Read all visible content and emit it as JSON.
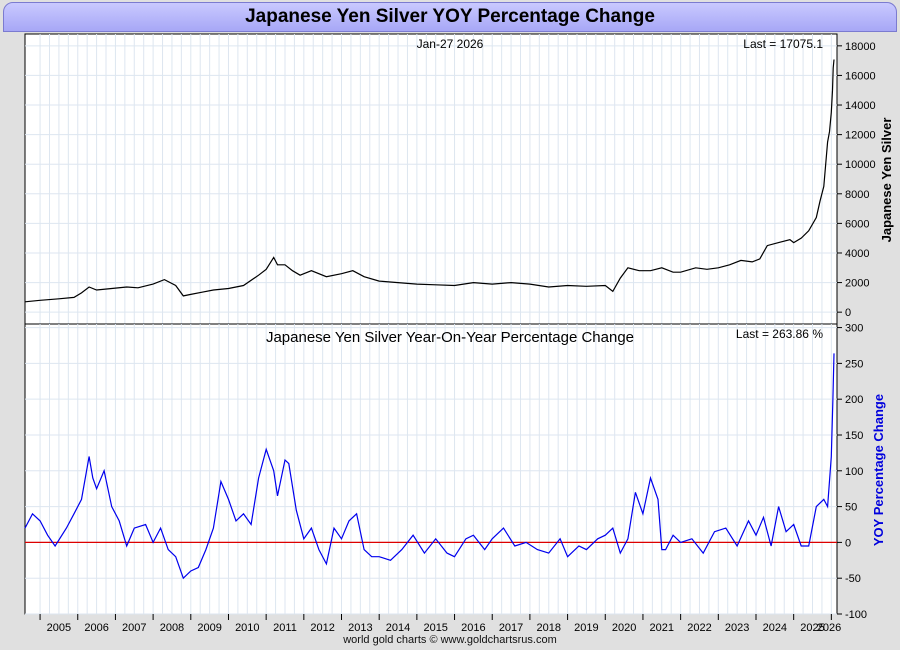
{
  "title": "Japanese Yen Silver YOY Percentage Change",
  "footer": "world gold charts © www.goldchartsrus.com",
  "colors": {
    "price_line": "#000000",
    "yoy_line": "#0000ee",
    "zero_line": "#dd0000",
    "grid": "#dde6f0",
    "ylabel_yoy": "#0000dd"
  },
  "chart_data": [
    {
      "type": "line",
      "title": "",
      "date_label": "Jan-27  2026",
      "last_label": "Last = 17075.1",
      "ylabel": "Japanese Yen Silver",
      "xlim": [
        2004.6,
        2026.15
      ],
      "ylim": [
        -800,
        18800
      ],
      "yticks": [
        0,
        2000,
        4000,
        6000,
        8000,
        10000,
        12000,
        14000,
        16000,
        18000
      ],
      "series": [
        {
          "name": "Japanese Yen Silver",
          "x": [
            2004.6,
            2005.0,
            2005.5,
            2005.9,
            2006.1,
            2006.3,
            2006.5,
            2006.9,
            2007.3,
            2007.6,
            2008.0,
            2008.3,
            2008.6,
            2008.8,
            2009.0,
            2009.3,
            2009.6,
            2010.0,
            2010.4,
            2010.8,
            2011.0,
            2011.2,
            2011.3,
            2011.5,
            2011.7,
            2011.9,
            2012.2,
            2012.6,
            2013.0,
            2013.3,
            2013.6,
            2014.0,
            2014.5,
            2015.0,
            2015.5,
            2016.0,
            2016.5,
            2017.0,
            2017.5,
            2018.0,
            2018.5,
            2019.0,
            2019.5,
            2020.0,
            2020.2,
            2020.4,
            2020.6,
            2020.9,
            2021.2,
            2021.5,
            2021.8,
            2022.0,
            2022.4,
            2022.7,
            2023.0,
            2023.3,
            2023.6,
            2023.9,
            2024.1,
            2024.3,
            2024.6,
            2024.9,
            2025.0,
            2025.2,
            2025.4,
            2025.6,
            2025.7,
            2025.8,
            2025.85,
            2025.9,
            2025.95,
            2026.0,
            2026.03,
            2026.05,
            2026.07
          ],
          "values": [
            700,
            800,
            900,
            1000,
            1300,
            1700,
            1500,
            1600,
            1700,
            1650,
            1900,
            2200,
            1800,
            1100,
            1200,
            1350,
            1500,
            1600,
            1800,
            2500,
            2900,
            3700,
            3200,
            3200,
            2800,
            2500,
            2800,
            2400,
            2600,
            2800,
            2400,
            2100,
            2000,
            1900,
            1850,
            1800,
            2000,
            1900,
            2000,
            1900,
            1700,
            1800,
            1750,
            1800,
            1400,
            2300,
            3000,
            2800,
            2800,
            3000,
            2700,
            2700,
            3000,
            2900,
            3000,
            3200,
            3500,
            3400,
            3600,
            4500,
            4700,
            4900,
            4700,
            5000,
            5500,
            6400,
            7500,
            8500,
            10000,
            11500,
            12200,
            13500,
            15000,
            16500,
            17075
          ]
        }
      ]
    },
    {
      "type": "line",
      "title": "Japanese Yen Silver Year-On-Year Percentage Change",
      "last_label": "Last = 263.86 %",
      "ylabel": "YOY Percentage Change",
      "xlabel_ticks": [
        "2005",
        "2006",
        "2007",
        "2008",
        "2009",
        "2010",
        "2011",
        "2012",
        "2013",
        "2014",
        "2015",
        "2016",
        "2017",
        "2018",
        "2019",
        "2020",
        "2021",
        "2022",
        "2023",
        "2024",
        "2025",
        "2026"
      ],
      "xlim": [
        2004.6,
        2026.15
      ],
      "ylim": [
        -100,
        305
      ],
      "yticks": [
        -100,
        -50,
        0,
        50,
        100,
        150,
        200,
        250,
        300
      ],
      "series": [
        {
          "name": "YOY Percentage Change",
          "x": [
            2004.6,
            2004.8,
            2005.0,
            2005.2,
            2005.4,
            2005.7,
            2005.9,
            2006.1,
            2006.3,
            2006.4,
            2006.5,
            2006.7,
            2006.9,
            2007.1,
            2007.3,
            2007.5,
            2007.8,
            2008.0,
            2008.2,
            2008.4,
            2008.6,
            2008.8,
            2009.0,
            2009.2,
            2009.4,
            2009.6,
            2009.8,
            2010.0,
            2010.2,
            2010.4,
            2010.6,
            2010.8,
            2011.0,
            2011.2,
            2011.3,
            2011.5,
            2011.6,
            2011.8,
            2012.0,
            2012.2,
            2012.4,
            2012.6,
            2012.8,
            2013.0,
            2013.2,
            2013.4,
            2013.6,
            2013.8,
            2014.0,
            2014.3,
            2014.6,
            2014.9,
            2015.2,
            2015.5,
            2015.8,
            2016.0,
            2016.3,
            2016.5,
            2016.8,
            2017.0,
            2017.3,
            2017.6,
            2017.9,
            2018.2,
            2018.5,
            2018.8,
            2019.0,
            2019.3,
            2019.5,
            2019.8,
            2020.0,
            2020.2,
            2020.4,
            2020.6,
            2020.8,
            2021.0,
            2021.2,
            2021.4,
            2021.5,
            2021.6,
            2021.8,
            2022.0,
            2022.3,
            2022.6,
            2022.9,
            2023.2,
            2023.5,
            2023.8,
            2024.0,
            2024.2,
            2024.4,
            2024.6,
            2024.8,
            2025.0,
            2025.2,
            2025.4,
            2025.6,
            2025.8,
            2025.9,
            2026.0,
            2026.04,
            2026.07
          ],
          "values": [
            20,
            40,
            30,
            10,
            -5,
            20,
            40,
            60,
            120,
            90,
            75,
            100,
            50,
            30,
            -5,
            20,
            25,
            0,
            20,
            -10,
            -20,
            -50,
            -40,
            -35,
            -10,
            20,
            85,
            60,
            30,
            40,
            25,
            90,
            130,
            100,
            65,
            115,
            110,
            45,
            5,
            20,
            -10,
            -30,
            20,
            5,
            30,
            40,
            -10,
            -20,
            -20,
            -25,
            -10,
            10,
            -15,
            5,
            -15,
            -20,
            5,
            10,
            -10,
            5,
            20,
            -5,
            0,
            -10,
            -15,
            5,
            -20,
            -5,
            -10,
            5,
            10,
            20,
            -15,
            5,
            70,
            40,
            90,
            60,
            -10,
            -10,
            10,
            0,
            5,
            -15,
            15,
            20,
            -5,
            30,
            10,
            35,
            -5,
            50,
            15,
            25,
            -5,
            -5,
            50,
            60,
            50,
            120,
            200,
            264
          ]
        }
      ],
      "zero_line": 0
    }
  ]
}
